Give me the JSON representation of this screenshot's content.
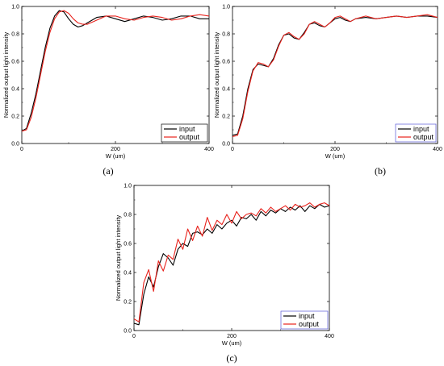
{
  "chart_data": [
    {
      "type": "line",
      "panel_label": "(a)",
      "xlabel": "W (um)",
      "ylabel": "Normalized output light intensity",
      "xlim": [
        0,
        400
      ],
      "ylim": [
        0.0,
        1.0
      ],
      "x_ticks": [
        "0",
        "200",
        "400"
      ],
      "y_ticks": [
        "0.0",
        "0.2",
        "0.4",
        "0.6",
        "0.8",
        "1.0"
      ],
      "legend": "bottom-right",
      "grid": false,
      "series": [
        {
          "name": "input",
          "color": "#000000",
          "x": [
            0,
            10,
            20,
            30,
            40,
            50,
            60,
            70,
            80,
            90,
            100,
            110,
            120,
            130,
            140,
            160,
            180,
            200,
            220,
            240,
            260,
            280,
            300,
            320,
            340,
            360,
            380,
            400
          ],
          "y": [
            0.09,
            0.11,
            0.22,
            0.36,
            0.53,
            0.7,
            0.84,
            0.93,
            0.97,
            0.96,
            0.91,
            0.87,
            0.85,
            0.86,
            0.88,
            0.92,
            0.93,
            0.91,
            0.89,
            0.91,
            0.93,
            0.92,
            0.9,
            0.91,
            0.93,
            0.93,
            0.91,
            0.91
          ]
        },
        {
          "name": "output",
          "color": "#e8221c",
          "x": [
            0,
            10,
            20,
            30,
            40,
            50,
            60,
            70,
            80,
            90,
            100,
            110,
            120,
            130,
            140,
            160,
            180,
            200,
            220,
            240,
            260,
            280,
            300,
            320,
            340,
            360,
            380,
            400
          ],
          "y": [
            0.09,
            0.1,
            0.19,
            0.33,
            0.5,
            0.67,
            0.81,
            0.91,
            0.96,
            0.97,
            0.95,
            0.91,
            0.88,
            0.87,
            0.87,
            0.9,
            0.93,
            0.93,
            0.91,
            0.9,
            0.92,
            0.93,
            0.92,
            0.9,
            0.91,
            0.93,
            0.94,
            0.93
          ]
        }
      ]
    },
    {
      "type": "line",
      "panel_label": "(b)",
      "xlabel": "W (um)",
      "ylabel": "Normalized output light intensity",
      "xlim": [
        0,
        400
      ],
      "ylim": [
        0.0,
        1.0
      ],
      "x_ticks": [
        "0",
        "200",
        "400"
      ],
      "y_ticks": [
        "0.0",
        "0.2",
        "0.4",
        "0.6",
        "0.8",
        "1.0"
      ],
      "legend": "bottom-right",
      "grid": false,
      "series": [
        {
          "name": "input",
          "color": "#000000",
          "x": [
            0,
            10,
            20,
            30,
            40,
            50,
            60,
            70,
            80,
            90,
            100,
            110,
            120,
            130,
            140,
            150,
            160,
            170,
            180,
            190,
            200,
            210,
            220,
            230,
            240,
            260,
            280,
            300,
            320,
            340,
            360,
            380,
            400
          ],
          "y": [
            0.06,
            0.07,
            0.2,
            0.4,
            0.54,
            0.58,
            0.57,
            0.56,
            0.62,
            0.72,
            0.79,
            0.8,
            0.77,
            0.76,
            0.81,
            0.87,
            0.88,
            0.86,
            0.85,
            0.88,
            0.91,
            0.92,
            0.9,
            0.89,
            0.91,
            0.92,
            0.91,
            0.92,
            0.93,
            0.92,
            0.93,
            0.93,
            0.92
          ]
        },
        {
          "name": "output",
          "color": "#e8221c",
          "x": [
            0,
            10,
            20,
            30,
            40,
            50,
            60,
            70,
            80,
            90,
            100,
            110,
            120,
            130,
            140,
            150,
            160,
            170,
            180,
            190,
            200,
            210,
            220,
            230,
            240,
            260,
            280,
            300,
            320,
            340,
            360,
            380,
            400
          ],
          "y": [
            0.05,
            0.06,
            0.18,
            0.38,
            0.53,
            0.59,
            0.58,
            0.56,
            0.61,
            0.71,
            0.79,
            0.81,
            0.78,
            0.76,
            0.8,
            0.87,
            0.89,
            0.87,
            0.85,
            0.88,
            0.92,
            0.93,
            0.91,
            0.89,
            0.91,
            0.93,
            0.91,
            0.92,
            0.93,
            0.92,
            0.93,
            0.94,
            0.92
          ]
        }
      ]
    },
    {
      "type": "line",
      "panel_label": "(c)",
      "xlabel": "W (um)",
      "ylabel": "Normalized output light intensity",
      "xlim": [
        0,
        400
      ],
      "ylim": [
        0.0,
        1.0
      ],
      "x_ticks": [
        "0",
        "200",
        "400"
      ],
      "y_ticks": [
        "0.0",
        "0.2",
        "0.4",
        "0.6",
        "0.8",
        "1.0"
      ],
      "legend": "bottom-right",
      "grid": false,
      "series": [
        {
          "name": "input",
          "color": "#000000",
          "x": [
            0,
            10,
            20,
            30,
            40,
            50,
            60,
            70,
            80,
            90,
            100,
            110,
            120,
            130,
            140,
            150,
            160,
            170,
            180,
            190,
            200,
            210,
            220,
            230,
            240,
            250,
            260,
            270,
            280,
            290,
            300,
            310,
            320,
            330,
            340,
            350,
            360,
            370,
            380,
            390,
            400
          ],
          "y": [
            0.05,
            0.04,
            0.25,
            0.37,
            0.3,
            0.44,
            0.53,
            0.5,
            0.45,
            0.56,
            0.6,
            0.58,
            0.67,
            0.68,
            0.66,
            0.7,
            0.67,
            0.73,
            0.7,
            0.74,
            0.76,
            0.72,
            0.78,
            0.77,
            0.8,
            0.76,
            0.82,
            0.79,
            0.83,
            0.81,
            0.84,
            0.82,
            0.85,
            0.83,
            0.86,
            0.82,
            0.86,
            0.84,
            0.87,
            0.85,
            0.86
          ]
        },
        {
          "name": "output",
          "color": "#e8221c",
          "x": [
            0,
            10,
            20,
            30,
            40,
            50,
            60,
            70,
            80,
            90,
            100,
            110,
            120,
            130,
            140,
            150,
            160,
            170,
            180,
            190,
            200,
            210,
            220,
            230,
            240,
            250,
            260,
            270,
            280,
            290,
            300,
            310,
            320,
            330,
            340,
            350,
            360,
            370,
            380,
            390,
            400
          ],
          "y": [
            0.08,
            0.06,
            0.33,
            0.42,
            0.27,
            0.48,
            0.41,
            0.52,
            0.49,
            0.63,
            0.56,
            0.7,
            0.62,
            0.72,
            0.65,
            0.78,
            0.69,
            0.76,
            0.73,
            0.8,
            0.74,
            0.82,
            0.77,
            0.8,
            0.81,
            0.79,
            0.84,
            0.81,
            0.85,
            0.82,
            0.84,
            0.86,
            0.83,
            0.87,
            0.85,
            0.86,
            0.88,
            0.85,
            0.87,
            0.88,
            0.86
          ]
        }
      ]
    }
  ]
}
